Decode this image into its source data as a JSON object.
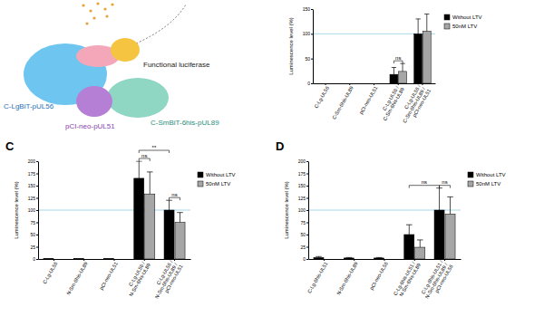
{
  "diagram": {
    "labels": [
      "Functional luciferase",
      "C-LgBiT-pUL56",
      "C-SmBiT-6his-pUL89",
      "pCI-neo-pUL51"
    ]
  },
  "chart_data": [
    {
      "type": "bar",
      "categories": [
        "C-Lg-UL56",
        "C-Sm-6his-UL89",
        "pCI-neo-UL51",
        "C-Lg-UL56 / C-Sm-6his-UL89",
        "C-Lg-UL56 / C-Sm-6his-UL89 / pCI-neo-UL51"
      ],
      "series": [
        {
          "name": "Without LTV",
          "color": "#000000",
          "values": [
            0,
            0,
            0,
            18,
            100
          ],
          "errors": [
            null,
            null,
            null,
            14,
            30
          ]
        },
        {
          "name": "50nM LTV",
          "color": "#a6a6a6",
          "values": [
            null,
            null,
            null,
            24,
            105
          ],
          "errors": [
            null,
            null,
            null,
            16,
            35
          ]
        }
      ],
      "y_label": "Luminescence level (%)",
      "ylim": [
        0,
        150
      ],
      "yticks": [
        0,
        50,
        100,
        150
      ],
      "grid": false,
      "legend": "right",
      "reference_line": 100,
      "annotations": [
        {
          "text": "ns",
          "bars": [
            [
              0,
              3
            ],
            [
              1,
              3
            ]
          ]
        }
      ]
    },
    {
      "type": "bar",
      "title": "C",
      "categories": [
        "C-Lg-UL56",
        "N-Sm-6his-UL89",
        "pCI-neo-UL51",
        "C-Lg-UL56 / N-Sm-6his-UL89",
        "C-Lg-UL56 / N-Sm-6his-UL89 / pCI-neo-UL51"
      ],
      "series": [
        {
          "name": "Without LTV",
          "color": "#000000",
          "values": [
            1,
            1,
            1,
            165,
            100
          ],
          "errors": [
            null,
            null,
            null,
            35,
            20
          ]
        },
        {
          "name": "50nM LTV",
          "color": "#a6a6a6",
          "values": [
            null,
            null,
            null,
            133,
            75
          ],
          "errors": [
            null,
            null,
            null,
            45,
            20
          ]
        }
      ],
      "y_label": "Luminescence level (%)",
      "ylim": [
        0,
        200
      ],
      "yticks": [
        0,
        25,
        50,
        75,
        100,
        125,
        150,
        175,
        200
      ],
      "grid": false,
      "legend": "right",
      "reference_line": 100,
      "annotations": [
        {
          "text": "ns",
          "bars": [
            [
              0,
              3
            ],
            [
              1,
              3
            ]
          ]
        },
        {
          "text": "ns",
          "bars": [
            [
              0,
              4
            ],
            [
              1,
              4
            ]
          ]
        },
        {
          "text": "**",
          "bars": [
            [
              0,
              3
            ],
            [
              0,
              4
            ]
          ]
        }
      ]
    },
    {
      "type": "bar",
      "title": "D",
      "categories": [
        "C-Lg-6his-UL51",
        "N-Sm-6his-UL89",
        "pCI-neo-UL56",
        "C-Lg-6his-UL51 / N-Sm-6his-UL89",
        "C-Lg-6his-UL51 / N-Sm-6his-UL89 / pCI-neo-UL56"
      ],
      "series": [
        {
          "name": "Without LTV",
          "color": "#000000",
          "values": [
            3,
            2,
            2,
            50,
            100
          ],
          "errors": [
            2,
            1,
            1,
            20,
            45
          ]
        },
        {
          "name": "50nM LTV",
          "color": "#a6a6a6",
          "values": [
            null,
            null,
            null,
            24,
            92
          ],
          "errors": [
            null,
            null,
            null,
            15,
            35
          ]
        }
      ],
      "y_label": "Luminescence level (%)",
      "ylim": [
        0,
        200
      ],
      "yticks": [
        0,
        25,
        50,
        75,
        100,
        125,
        150,
        175,
        200
      ],
      "grid": false,
      "legend": "right",
      "reference_line": 100,
      "annotations": [
        {
          "text": "ns",
          "bars": [
            [
              0,
              4
            ],
            [
              1,
              4
            ]
          ]
        },
        {
          "text": "ns",
          "bars": [
            [
              0,
              3
            ],
            [
              0,
              4
            ]
          ]
        }
      ]
    }
  ]
}
